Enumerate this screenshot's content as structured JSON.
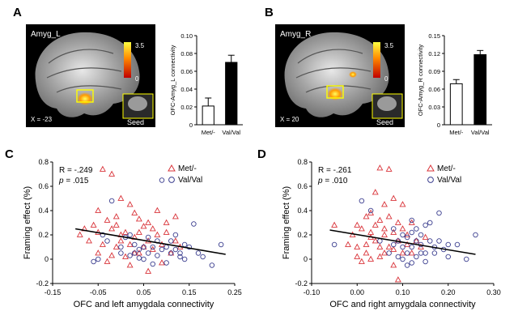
{
  "panels": {
    "A": {
      "label": "A",
      "image_title": "Amyg_L",
      "coordinate": "X = -23",
      "colorbar_max": "3.5",
      "colorbar_min": "0",
      "seed_label": "Seed"
    },
    "B": {
      "label": "B",
      "image_title": "Amyg_R",
      "coordinate": "X = 20",
      "colorbar_max": "3.5",
      "colorbar_min": "0",
      "seed_label": "Seed"
    },
    "C": {
      "label": "C"
    },
    "D": {
      "label": "D"
    }
  },
  "colors": {
    "met": "#d9343a",
    "val": "#3b3e8f",
    "bar_met": "#ffffff",
    "bar_val": "#000000",
    "fit": "#000000"
  },
  "chart_data": [
    {
      "id": "A-bar",
      "type": "bar",
      "categories": [
        "Met/-",
        "Val/Val"
      ],
      "values": [
        0.021,
        0.07
      ],
      "errors": [
        0.009,
        0.008
      ],
      "ylabel": "OFC-Amyg_L connectivity",
      "ylim": [
        0,
        0.1
      ],
      "yticks": [
        0,
        0.02,
        0.04,
        0.06,
        0.08,
        0.1
      ],
      "yticklabels": [
        "0",
        "0.02",
        "0.04",
        "0.06",
        "0.08",
        "0.10"
      ]
    },
    {
      "id": "B-bar",
      "type": "bar",
      "categories": [
        "Met/-",
        "Val/Val"
      ],
      "values": [
        0.069,
        0.118
      ],
      "errors": [
        0.007,
        0.007
      ],
      "ylabel": "OFC-Amyg_R connectivity",
      "ylim": [
        0,
        0.15
      ],
      "yticks": [
        0,
        0.03,
        0.06,
        0.09,
        0.12,
        0.15
      ],
      "yticklabels": [
        "0",
        "0.03",
        "0.06",
        "0.09",
        "0.12",
        "0.15"
      ]
    },
    {
      "id": "C-scatter",
      "type": "scatter",
      "xlabel": "OFC and left amygdala connectivity",
      "ylabel": "Framing effect (%)",
      "xlim": [
        -0.15,
        0.25
      ],
      "ylim": [
        -0.2,
        0.8
      ],
      "xticks": [
        -0.15,
        -0.05,
        0.05,
        0.15,
        0.25
      ],
      "xticklabels": [
        "-0.15",
        "-0.05",
        "0.05",
        "0.15",
        "0.25"
      ],
      "yticks": [
        -0.2,
        0,
        0.2,
        0.4,
        0.6,
        0.8
      ],
      "yticklabels": [
        "-0.2",
        "0",
        "0.2",
        "0.4",
        "0.6",
        "0.8"
      ],
      "stats": {
        "r": "R = -.249",
        "p_label": "p",
        "p_value": " = .015"
      },
      "fit": {
        "x": [
          -0.1,
          0.23
        ],
        "y": [
          0.25,
          0.04
        ]
      },
      "series": [
        {
          "name": "Met/-",
          "marker": "triangle",
          "points": [
            [
              -0.04,
              0.74
            ],
            [
              -0.02,
              0.7
            ],
            [
              0,
              0.5
            ],
            [
              0.02,
              0.45
            ],
            [
              -0.05,
              0.4
            ],
            [
              -0.01,
              0.35
            ],
            [
              -0.03,
              0.32
            ],
            [
              0.04,
              0.33
            ],
            [
              -0.06,
              0.28
            ],
            [
              -0.08,
              0.25
            ],
            [
              -0.05,
              0.22
            ],
            [
              -0.02,
              0.25
            ],
            [
              0,
              0.2
            ],
            [
              0.01,
              0.22
            ],
            [
              0.03,
              0.18
            ],
            [
              0.05,
              0.27
            ],
            [
              0.06,
              0.15
            ],
            [
              0.02,
              0.12
            ],
            [
              -0.01,
              0.1
            ],
            [
              -0.04,
              0.12
            ],
            [
              0.08,
              0.2
            ],
            [
              0.1,
              0.22
            ],
            [
              0.07,
              0.08
            ],
            [
              0.04,
              0.05
            ],
            [
              0.01,
              0.02
            ],
            [
              -0.02,
              0.03
            ],
            [
              -0.03,
              -0.02
            ],
            [
              0.05,
              0.1
            ],
            [
              0.09,
              0.12
            ],
            [
              0.11,
              0.05
            ],
            [
              0.12,
              0.35
            ],
            [
              0.08,
              0.4
            ],
            [
              0.03,
              0.38
            ],
            [
              -0.07,
              0.15
            ],
            [
              0.02,
              -0.05
            ],
            [
              0.06,
              -0.1
            ],
            [
              0.09,
              -0.03
            ],
            [
              0.13,
              0.1
            ],
            [
              0.1,
              0.3
            ],
            [
              0.0,
              0.15
            ],
            [
              -0.09,
              0.2
            ],
            [
              0.04,
              0.22
            ],
            [
              0.07,
              0.25
            ],
            [
              0.06,
              0.3
            ],
            [
              -0.01,
              0.28
            ],
            [
              0.12,
              0.15
            ],
            [
              0.03,
              0.05
            ],
            [
              -0.05,
              0.05
            ]
          ]
        },
        {
          "name": "Val/Val",
          "marker": "circle",
          "points": [
            [
              -0.04,
              0.2
            ],
            [
              -0.05,
              0.0
            ],
            [
              -0.06,
              -0.02
            ],
            [
              -0.02,
              0.48
            ],
            [
              -0.03,
              0.15
            ],
            [
              0.0,
              0.1
            ],
            [
              0.02,
              0.03
            ],
            [
              0.03,
              0.12
            ],
            [
              0.04,
              0.08
            ],
            [
              0.05,
              0.0
            ],
            [
              0.06,
              0.05
            ],
            [
              0.07,
              0.1
            ],
            [
              0.08,
              0.03
            ],
            [
              0.09,
              0.65
            ],
            [
              0.1,
              0.1
            ],
            [
              0.11,
              0.05
            ],
            [
              0.12,
              0.08
            ],
            [
              0.13,
              0.02
            ],
            [
              0.14,
              0.0
            ],
            [
              0.15,
              0.1
            ],
            [
              0.16,
              0.29
            ],
            [
              0.17,
              0.05
            ],
            [
              0.18,
              0.02
            ],
            [
              0.2,
              -0.05
            ],
            [
              0.22,
              0.12
            ],
            [
              0.1,
              -0.03
            ],
            [
              0.07,
              -0.04
            ],
            [
              0.05,
              0.1
            ],
            [
              0.06,
              0.18
            ],
            [
              0.03,
              0.05
            ],
            [
              0.01,
              0.18
            ],
            [
              0.11,
              0.15
            ],
            [
              0.12,
              0.2
            ],
            [
              0.08,
              0.15
            ],
            [
              0.04,
              0.01
            ],
            [
              0.13,
              0.05
            ],
            [
              0.09,
              0.08
            ],
            [
              0.14,
              0.12
            ],
            [
              0.02,
              0.2
            ],
            [
              0.0,
              0.05
            ]
          ]
        }
      ]
    },
    {
      "id": "D-scatter",
      "type": "scatter",
      "xlabel": "OFC and right amygdala connectivity",
      "ylabel": "Framing effect (%)",
      "xlim": [
        -0.1,
        0.3
      ],
      "ylim": [
        -0.2,
        0.8
      ],
      "xticks": [
        -0.1,
        0,
        0.1,
        0.2,
        0.3
      ],
      "xticklabels": [
        "-0.10",
        "0.00",
        "0.10",
        "0.20",
        "0.30"
      ],
      "yticks": [
        -0.2,
        0,
        0.2,
        0.4,
        0.6,
        0.8
      ],
      "yticklabels": [
        "-0.2",
        "0",
        "0.2",
        "0.4",
        "0.6",
        "0.8"
      ],
      "stats": {
        "r": "R = -.261",
        "p_label": "p",
        "p_value": " = .010"
      },
      "fit": {
        "x": [
          -0.06,
          0.26
        ],
        "y": [
          0.24,
          0.04
        ]
      },
      "series": [
        {
          "name": "Met/-",
          "marker": "triangle",
          "points": [
            [
              0.05,
              0.75
            ],
            [
              0.07,
              0.74
            ],
            [
              0.04,
              0.55
            ],
            [
              0.08,
              0.5
            ],
            [
              0.06,
              0.45
            ],
            [
              0.1,
              0.45
            ],
            [
              0.03,
              0.38
            ],
            [
              0.02,
              0.35
            ],
            [
              0.05,
              0.32
            ],
            [
              0.09,
              0.3
            ],
            [
              0.0,
              0.28
            ],
            [
              -0.05,
              0.28
            ],
            [
              0.01,
              0.25
            ],
            [
              0.03,
              0.22
            ],
            [
              0.06,
              0.2
            ],
            [
              0.08,
              0.22
            ],
            [
              0.04,
              0.15
            ],
            [
              0.02,
              0.12
            ],
            [
              0.0,
              0.1
            ],
            [
              -0.02,
              0.12
            ],
            [
              0.07,
              0.1
            ],
            [
              0.1,
              0.05
            ],
            [
              0.05,
              0.02
            ],
            [
              0.03,
              0.0
            ],
            [
              0.01,
              -0.02
            ],
            [
              0.08,
              -0.05
            ],
            [
              0.09,
              -0.17
            ],
            [
              0.11,
              0.2
            ],
            [
              0.12,
              0.3
            ],
            [
              0.13,
              0.15
            ],
            [
              0.14,
              0.1
            ],
            [
              0.06,
              0.05
            ],
            [
              0.04,
              0.28
            ],
            [
              0.09,
              0.15
            ],
            [
              0.11,
              0.12
            ],
            [
              -0.01,
              0.2
            ],
            [
              0.02,
              0.05
            ],
            [
              0.07,
              0.35
            ],
            [
              0.12,
              0.05
            ],
            [
              0.15,
              0.18
            ],
            [
              0.03,
              0.18
            ],
            [
              0.05,
              0.1
            ],
            [
              0.1,
              0.25
            ],
            [
              0.08,
              0.08
            ],
            [
              0.0,
              0.02
            ],
            [
              0.06,
              0.25
            ]
          ]
        },
        {
          "name": "Val/Val",
          "marker": "circle",
          "points": [
            [
              -0.05,
              0.12
            ],
            [
              0.01,
              0.48
            ],
            [
              0.03,
              0.4
            ],
            [
              0.05,
              0.15
            ],
            [
              0.07,
              0.05
            ],
            [
              0.08,
              0.12
            ],
            [
              0.09,
              0.02
            ],
            [
              0.1,
              0.1
            ],
            [
              0.11,
              0.05
            ],
            [
              0.12,
              0.32
            ],
            [
              0.13,
              0.25
            ],
            [
              0.14,
              0.12
            ],
            [
              0.15,
              0.05
            ],
            [
              0.16,
              0.15
            ],
            [
              0.17,
              0.1
            ],
            [
              0.18,
              0.38
            ],
            [
              0.19,
              0.08
            ],
            [
              0.2,
              0.02
            ],
            [
              0.22,
              0.12
            ],
            [
              0.24,
              0.0
            ],
            [
              0.26,
              0.2
            ],
            [
              0.12,
              -0.03
            ],
            [
              0.11,
              -0.05
            ],
            [
              0.13,
              0.02
            ],
            [
              0.1,
              0.2
            ],
            [
              0.09,
              0.15
            ],
            [
              0.14,
              0.2
            ],
            [
              0.15,
              0.28
            ],
            [
              0.16,
              0.3
            ],
            [
              0.12,
              0.1
            ],
            [
              0.13,
              0.15
            ],
            [
              0.11,
              0.18
            ],
            [
              0.1,
              0.0
            ],
            [
              0.15,
              -0.02
            ],
            [
              0.17,
              0.05
            ],
            [
              0.18,
              0.15
            ],
            [
              0.2,
              0.12
            ],
            [
              0.08,
              0.25
            ],
            [
              0.12,
              0.22
            ],
            [
              0.14,
              0.05
            ]
          ]
        }
      ]
    }
  ]
}
